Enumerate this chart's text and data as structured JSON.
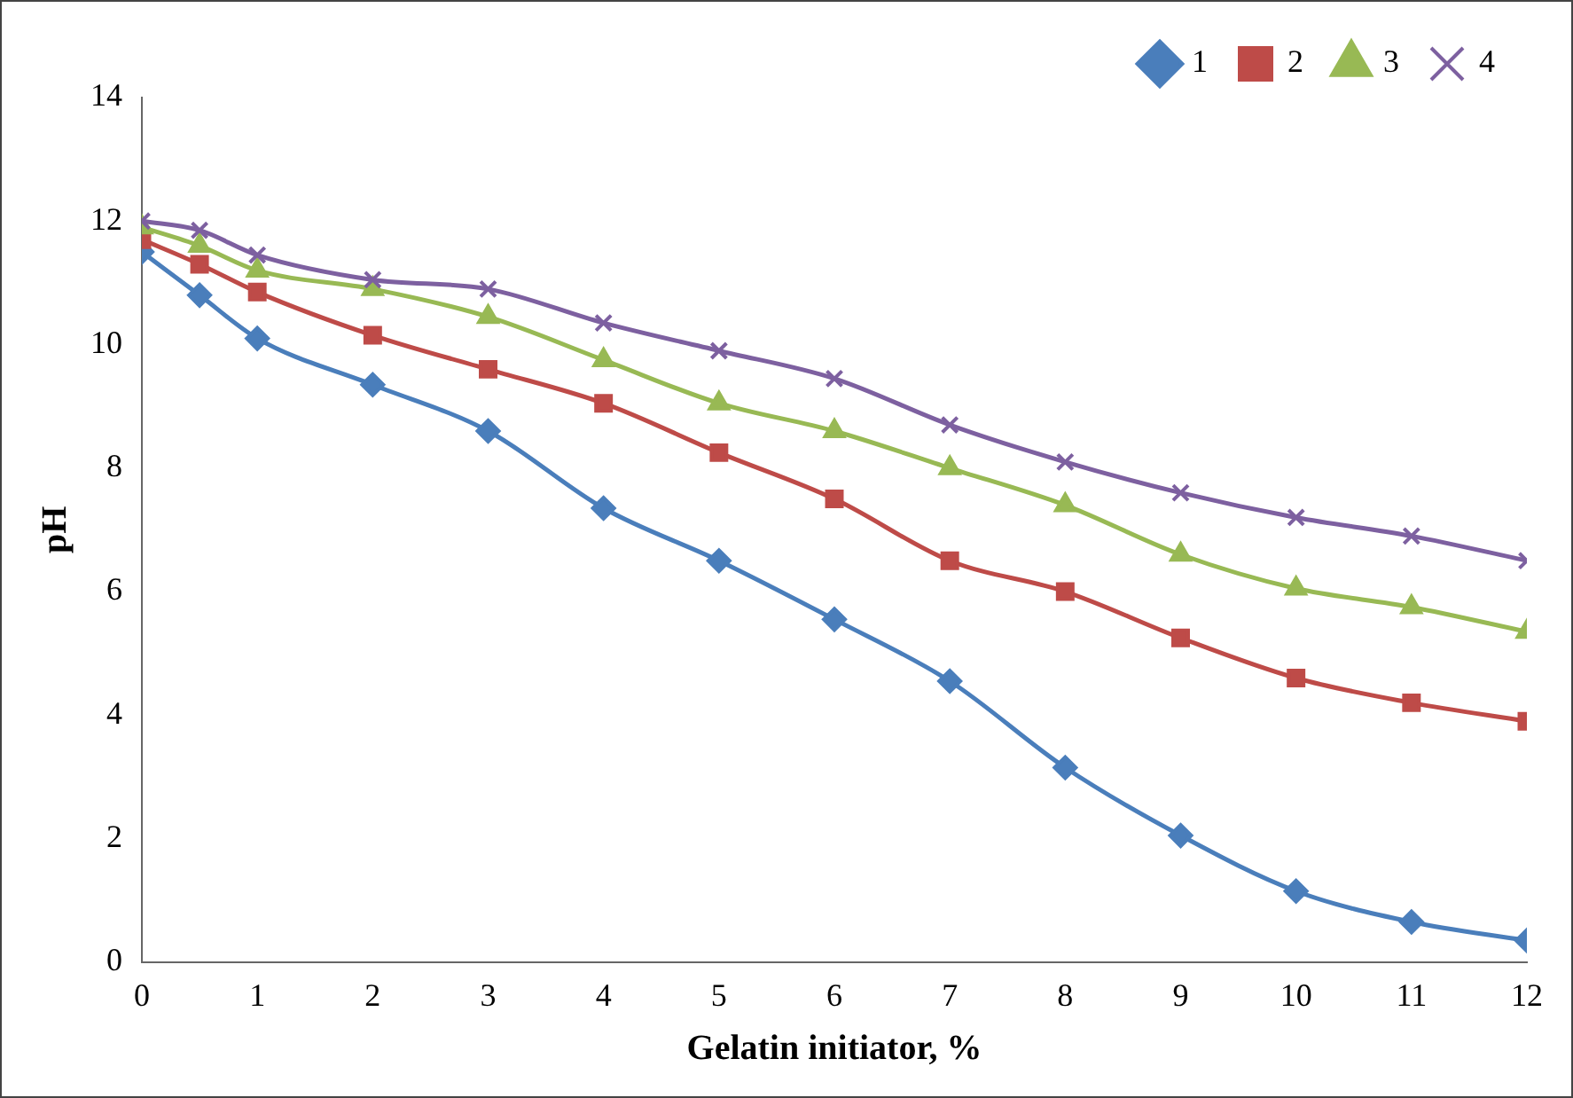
{
  "chart_data": {
    "type": "line",
    "xlabel": "Gelatin initiator, %",
    "ylabel": "pH",
    "x": [
      0,
      0.5,
      1,
      2,
      3,
      4,
      5,
      6,
      7,
      8,
      9,
      10,
      11,
      12
    ],
    "xlim": [
      0,
      12
    ],
    "xticks": [
      0,
      1,
      2,
      3,
      4,
      5,
      6,
      7,
      8,
      9,
      10,
      11,
      12
    ],
    "ylim": [
      0,
      14
    ],
    "yticks": [
      0,
      2,
      4,
      6,
      8,
      10,
      12,
      14
    ],
    "grid": false,
    "legend": "top right",
    "series": [
      {
        "name": "1",
        "color": "#4a7ebb",
        "marker": "diamond",
        "values": [
          11.5,
          10.8,
          10.1,
          9.35,
          8.6,
          7.35,
          6.5,
          5.55,
          4.55,
          3.15,
          2.05,
          1.15,
          0.65,
          0.35
        ]
      },
      {
        "name": "2",
        "color": "#be4b48",
        "marker": "square",
        "values": [
          11.7,
          11.3,
          10.85,
          10.15,
          9.6,
          9.05,
          8.25,
          7.5,
          6.5,
          6.0,
          5.25,
          4.6,
          4.2,
          3.9
        ]
      },
      {
        "name": "3",
        "color": "#98b954",
        "marker": "triangle",
        "values": [
          11.9,
          11.6,
          11.2,
          10.9,
          10.45,
          9.75,
          9.05,
          8.6,
          8.0,
          7.4,
          6.6,
          6.05,
          5.75,
          5.35
        ]
      },
      {
        "name": "4",
        "color": "#7d60a0",
        "marker": "cross",
        "values": [
          12.0,
          11.85,
          11.45,
          11.05,
          10.9,
          10.35,
          9.9,
          9.45,
          8.7,
          8.1,
          7.6,
          7.2,
          6.9,
          6.5
        ]
      }
    ]
  }
}
